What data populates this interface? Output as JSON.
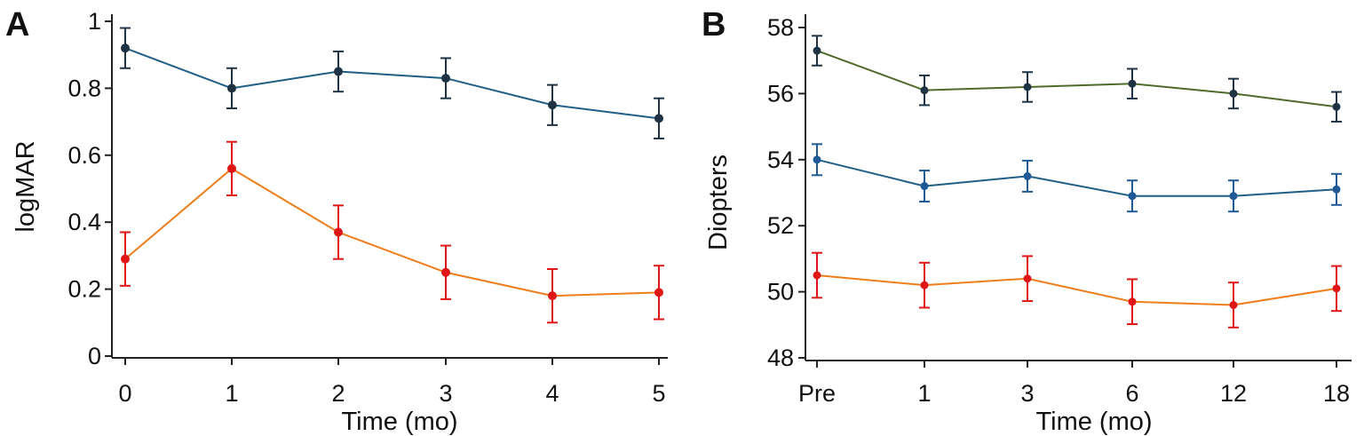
{
  "colors": {
    "teal": "#1f5f86",
    "orange": "#ef7d1a",
    "green": "#4f6b2a",
    "dark_marker": "#1f3344",
    "red_marker": "#e01515",
    "blue_marker": "#1e5a96"
  },
  "chart_data": [
    {
      "panel": "A",
      "type": "line",
      "xlabel": "Time (mo)",
      "ylabel": "logMAR",
      "x": [
        0,
        1,
        2,
        3,
        4,
        5
      ],
      "x_tick_labels": [
        "0",
        "1",
        "2",
        "3",
        "4",
        "5"
      ],
      "ylim": [
        0,
        1
      ],
      "y_ticks": [
        0,
        0.2,
        0.4,
        0.6,
        0.8,
        1
      ],
      "y_tick_labels": [
        "0",
        "0.2",
        "0.4",
        "0.6",
        "0.8",
        "1"
      ],
      "grid": false,
      "series": [
        {
          "values": [
            0.92,
            0.8,
            0.85,
            0.83,
            0.75,
            0.71
          ],
          "error": [
            0.06,
            0.06,
            0.06,
            0.06,
            0.06,
            0.06
          ],
          "line_color": "#1f5f86",
          "marker_color": "#1f3344"
        },
        {
          "values": [
            0.29,
            0.56,
            0.37,
            0.25,
            0.18,
            0.19
          ],
          "error": [
            0.08,
            0.08,
            0.08,
            0.08,
            0.08,
            0.08
          ],
          "line_color": "#ef7d1a",
          "marker_color": "#e01515"
        }
      ]
    },
    {
      "panel": "B",
      "type": "line",
      "xlabel": "Time (mo)",
      "ylabel": "Diopters",
      "x": [
        "Pre",
        "1",
        "3",
        "6",
        "12",
        "18"
      ],
      "x_tick_labels": [
        "Pre",
        "1",
        "3",
        "6",
        "12",
        "18"
      ],
      "ylim": [
        48,
        58
      ],
      "y_ticks": [
        48,
        50,
        52,
        54,
        56,
        58
      ],
      "y_tick_labels": [
        "48",
        "50",
        "52",
        "54",
        "56",
        "58"
      ],
      "grid": false,
      "series": [
        {
          "values": [
            57.3,
            56.1,
            56.2,
            56.3,
            56.0,
            55.6
          ],
          "error": [
            0.45,
            0.45,
            0.45,
            0.45,
            0.45,
            0.45
          ],
          "line_color": "#4f6b2a",
          "marker_color": "#1f3344"
        },
        {
          "values": [
            54.0,
            53.2,
            53.5,
            52.9,
            52.9,
            53.1
          ],
          "error": [
            0.47,
            0.47,
            0.47,
            0.47,
            0.47,
            0.47
          ],
          "line_color": "#1f5f86",
          "marker_color": "#1e5a96"
        },
        {
          "values": [
            50.5,
            50.2,
            50.4,
            49.7,
            49.6,
            50.1
          ],
          "error": [
            0.68,
            0.68,
            0.68,
            0.68,
            0.68,
            0.68
          ],
          "line_color": "#ef7d1a",
          "marker_color": "#e01515"
        }
      ]
    }
  ]
}
